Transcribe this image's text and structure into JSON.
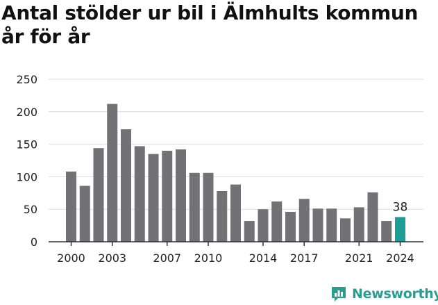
{
  "title": "Antal stölder ur bil i Älmhults kommun år för år",
  "brand": {
    "name": "Newsworthy"
  },
  "colors": {
    "bar": "#727176",
    "highlight": "#1a9e96",
    "grid": "#dcdcdc",
    "axis": "#333333",
    "text": "#222222",
    "brand": "#2a9d8f"
  },
  "chart_data": {
    "type": "bar",
    "title": "Antal stölder ur bil i Älmhults kommun år för år",
    "xlabel": "",
    "ylabel": "",
    "x": [
      2000,
      2001,
      2002,
      2003,
      2004,
      2005,
      2006,
      2007,
      2008,
      2009,
      2010,
      2011,
      2012,
      2013,
      2014,
      2015,
      2016,
      2017,
      2018,
      2019,
      2020,
      2021,
      2022,
      2023,
      2024
    ],
    "values": [
      108,
      86,
      144,
      212,
      173,
      147,
      135,
      140,
      142,
      106,
      106,
      78,
      88,
      32,
      50,
      62,
      46,
      66,
      51,
      51,
      36,
      53,
      76,
      32,
      38
    ],
    "xticks": [
      2000,
      2003,
      2007,
      2010,
      2014,
      2017,
      2021,
      2024
    ],
    "yticks": [
      0,
      50,
      100,
      150,
      200,
      250
    ],
    "ylim": [
      0,
      250
    ],
    "grid": true,
    "highlight_index": 24,
    "data_labels": [
      {
        "x": 2024,
        "text": "38"
      }
    ]
  }
}
